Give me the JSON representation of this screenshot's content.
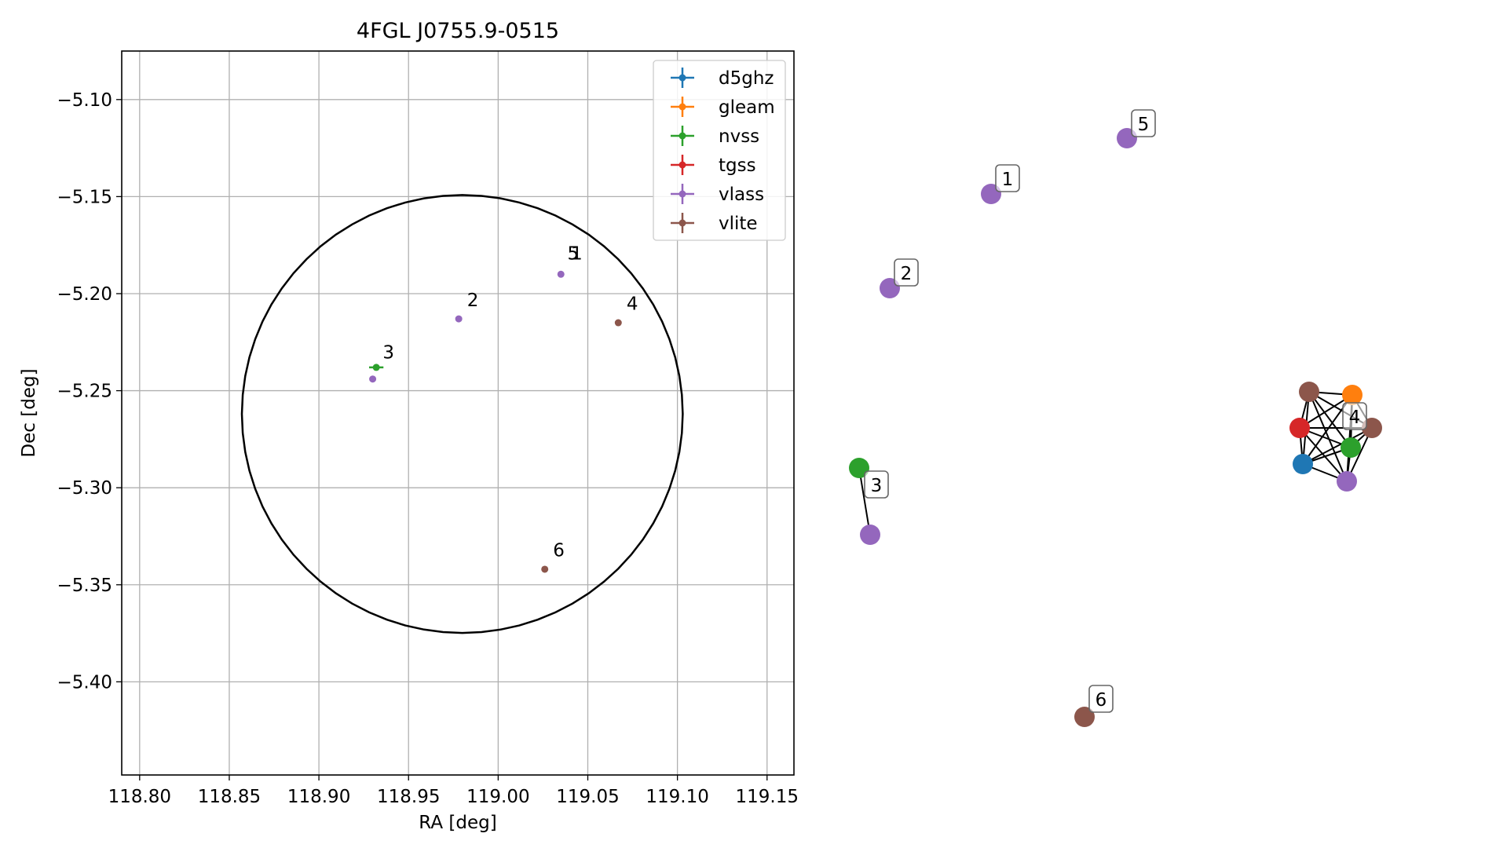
{
  "chart_data": [
    {
      "type": "scatter",
      "title": "4FGL J0755.9-0515",
      "xlabel": "RA [deg]",
      "ylabel": "Dec [deg]",
      "xlim": [
        118.79,
        119.165
      ],
      "ylim": [
        -5.448,
        -5.075
      ],
      "x_ticks": [
        118.8,
        118.85,
        118.9,
        118.95,
        119.0,
        119.05,
        119.1,
        119.15
      ],
      "x_tick_labels": [
        "118.80",
        "118.85",
        "118.90",
        "118.95",
        "119.00",
        "119.05",
        "119.10",
        "119.15"
      ],
      "y_ticks": [
        -5.1,
        -5.15,
        -5.2,
        -5.25,
        -5.3,
        -5.35,
        -5.4
      ],
      "y_tick_labels": [
        "−5.10",
        "−5.15",
        "−5.20",
        "−5.25",
        "−5.30",
        "−5.35",
        "−5.40"
      ],
      "grid": true,
      "legend_position": "top-right",
      "legend": [
        {
          "name": "d5ghz",
          "color": "#1f77b4"
        },
        {
          "name": "gleam",
          "color": "#ff7f0e"
        },
        {
          "name": "nvss",
          "color": "#2ca02c"
        },
        {
          "name": "tgss",
          "color": "#d62728"
        },
        {
          "name": "vlass",
          "color": "#9467bd"
        },
        {
          "name": "vlite",
          "color": "#8c564b"
        }
      ],
      "circle": {
        "center_ra": 118.98,
        "center_dec": -5.262,
        "radius_deg": 0.1128,
        "color": "#000000"
      },
      "points": [
        {
          "series": "vlass",
          "x": 119.035,
          "y": -5.19,
          "color": "#9467bd"
        },
        {
          "series": "vlass",
          "x": 118.978,
          "y": -5.213,
          "color": "#9467bd"
        },
        {
          "series": "nvss",
          "x": 118.932,
          "y": -5.238,
          "color": "#2ca02c",
          "xerr": 0.004,
          "yerr": 0.0015
        },
        {
          "series": "vlass",
          "x": 118.93,
          "y": -5.244,
          "color": "#9467bd"
        },
        {
          "series": "vlite",
          "x": 119.067,
          "y": -5.215,
          "color": "#8c564b"
        },
        {
          "series": "vlite",
          "x": 119.026,
          "y": -5.342,
          "color": "#8c564b"
        }
      ],
      "labels": [
        {
          "text": "5",
          "x": 119.036,
          "y": -5.184
        },
        {
          "text": "1",
          "x": 119.038,
          "y": -5.184
        },
        {
          "text": "2",
          "x": 118.98,
          "y": -5.208
        },
        {
          "text": "3",
          "x": 118.933,
          "y": -5.235
        },
        {
          "text": "4",
          "x": 119.069,
          "y": -5.21
        },
        {
          "text": "6",
          "x": 119.028,
          "y": -5.337
        }
      ]
    },
    {
      "type": "network",
      "nodes": [
        {
          "id": "1",
          "series": "vlass",
          "color": "#9467bd",
          "label": "1"
        },
        {
          "id": "5",
          "series": "vlass",
          "color": "#9467bd",
          "label": "5"
        },
        {
          "id": "2",
          "series": "vlass",
          "color": "#9467bd",
          "label": "2"
        },
        {
          "id": "3a",
          "series": "nvss",
          "color": "#2ca02c",
          "label": ""
        },
        {
          "id": "3b",
          "series": "vlass",
          "color": "#9467bd",
          "label": "3"
        },
        {
          "id": "6",
          "series": "vlite",
          "color": "#8c564b",
          "label": "6"
        },
        {
          "id": "4a",
          "series": "vlite",
          "color": "#8c564b",
          "label": ""
        },
        {
          "id": "4b",
          "series": "gleam",
          "color": "#ff7f0e",
          "label": "4"
        },
        {
          "id": "4c",
          "series": "tgss",
          "color": "#d62728",
          "label": ""
        },
        {
          "id": "4d",
          "series": "vlite",
          "color": "#8c564b",
          "label": ""
        },
        {
          "id": "4e",
          "series": "nvss",
          "color": "#2ca02c",
          "label": ""
        },
        {
          "id": "4f",
          "series": "d5ghz",
          "color": "#1f77b4",
          "label": ""
        },
        {
          "id": "4g",
          "series": "vlass",
          "color": "#9467bd",
          "label": ""
        }
      ],
      "edges": [
        [
          "3a",
          "3b"
        ],
        [
          "4a",
          "4b"
        ],
        [
          "4a",
          "4c"
        ],
        [
          "4a",
          "4d"
        ],
        [
          "4a",
          "4e"
        ],
        [
          "4a",
          "4f"
        ],
        [
          "4a",
          "4g"
        ],
        [
          "4b",
          "4c"
        ],
        [
          "4b",
          "4d"
        ],
        [
          "4b",
          "4e"
        ],
        [
          "4b",
          "4f"
        ],
        [
          "4b",
          "4g"
        ],
        [
          "4c",
          "4d"
        ],
        [
          "4c",
          "4e"
        ],
        [
          "4c",
          "4f"
        ],
        [
          "4c",
          "4g"
        ],
        [
          "4d",
          "4e"
        ],
        [
          "4d",
          "4f"
        ],
        [
          "4d",
          "4g"
        ],
        [
          "4e",
          "4f"
        ],
        [
          "4e",
          "4g"
        ],
        [
          "4f",
          "4g"
        ]
      ]
    }
  ]
}
